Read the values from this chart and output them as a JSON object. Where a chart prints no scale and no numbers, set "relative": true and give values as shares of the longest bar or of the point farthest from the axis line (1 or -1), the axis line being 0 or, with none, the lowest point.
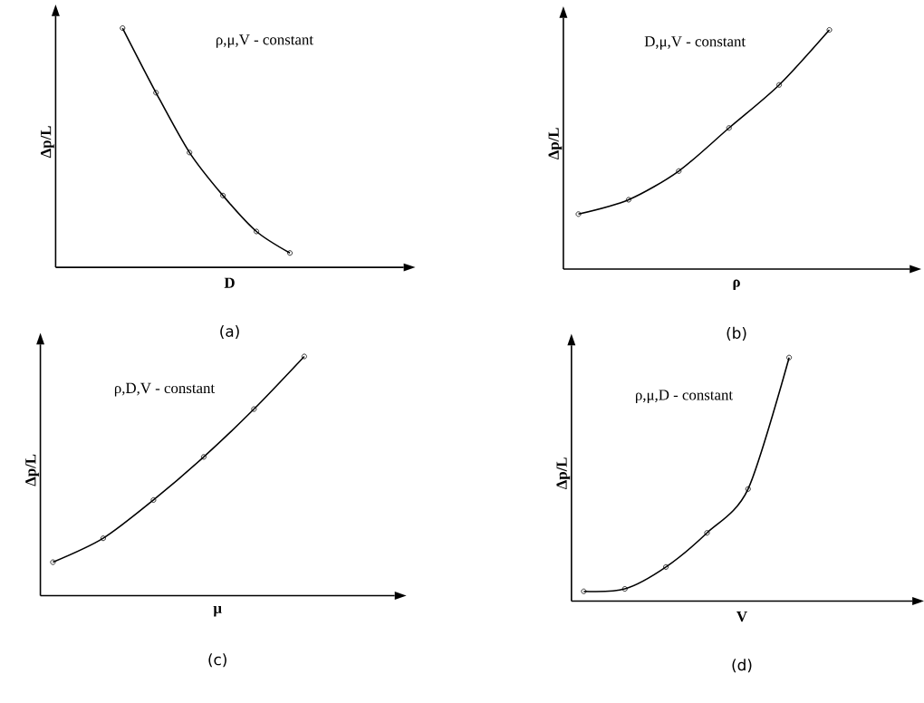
{
  "chart_data": [
    {
      "type": "line",
      "relative": true,
      "xlabel": "D",
      "ylabel": "Δp/L",
      "annotations": [
        "ρ,μ,V - constant",
        "(a)"
      ],
      "marker": "circle",
      "categories": [
        null,
        null,
        null,
        null,
        null,
        null
      ],
      "series": [
        {
          "color": "#000000",
          "values": [
            1,
            0.73,
            0.48,
            0.3,
            0.15,
            0.06
          ]
        }
      ]
    },
    {
      "type": "line",
      "relative": true,
      "xlabel": "ρ",
      "ylabel": "Δp/L",
      "annotations": [
        "D,μ,V - constant",
        "(b)"
      ],
      "marker": "circle",
      "categories": [
        null,
        null,
        null,
        null,
        null,
        null
      ],
      "series": [
        {
          "color": "#000000",
          "values": [
            0.23,
            0.29,
            0.41,
            0.59,
            0.77,
            1
          ]
        }
      ]
    },
    {
      "type": "line",
      "relative": true,
      "xlabel": "μ",
      "ylabel": "Δp/L",
      "annotations": [
        "ρ,D,V - constant",
        "(c)"
      ],
      "marker": "circle",
      "categories": [
        null,
        null,
        null,
        null,
        null,
        null
      ],
      "series": [
        {
          "color": "#000000",
          "values": [
            0.14,
            0.24,
            0.4,
            0.58,
            0.78,
            1
          ]
        }
      ]
    },
    {
      "type": "line",
      "relative": true,
      "xlabel": "V",
      "ylabel": "Δp/L",
      "annotations": [
        "ρ,μ,D - constant",
        "(d)"
      ],
      "marker": "circle",
      "categories": [
        null,
        null,
        null,
        null,
        null,
        null
      ],
      "series": [
        {
          "color": "#000000",
          "values": [
            0.04,
            0.05,
            0.14,
            0.28,
            0.46,
            1
          ]
        }
      ]
    }
  ]
}
